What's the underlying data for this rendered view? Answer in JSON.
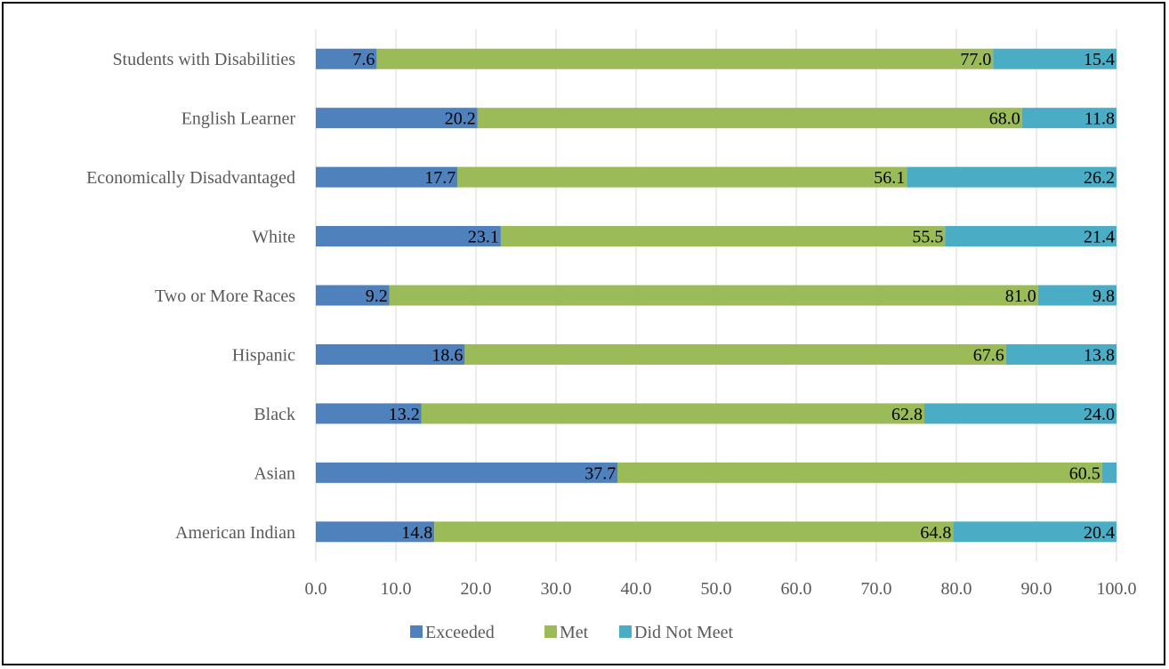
{
  "chart_data": {
    "type": "bar",
    "orientation": "horizontal",
    "stacked": true,
    "categories": [
      "Students with Disabilities",
      "English Learner",
      "Economically Disadvantaged",
      "White",
      "Two or More Races",
      "Hispanic",
      "Black",
      "Asian",
      "American Indian"
    ],
    "series": [
      {
        "name": "Exceeded",
        "color": "#4f81bd",
        "values": [
          7.6,
          20.2,
          17.7,
          23.1,
          9.2,
          18.6,
          13.2,
          37.7,
          14.8
        ]
      },
      {
        "name": "Met",
        "color": "#9bbb59",
        "values": [
          77.0,
          68.0,
          56.1,
          55.5,
          81.0,
          67.6,
          62.8,
          60.5,
          64.8
        ]
      },
      {
        "name": "Did Not Meet",
        "color": "#4bacc6",
        "values": [
          15.4,
          11.8,
          26.2,
          21.4,
          9.8,
          13.8,
          24.0,
          1.8,
          20.4
        ]
      }
    ],
    "data_labels": [
      [
        "7.6",
        "77.0",
        "15.4"
      ],
      [
        "20.2",
        "68.0",
        "11.8"
      ],
      [
        "17.7",
        "56.1",
        "26.2"
      ],
      [
        "23.1",
        "55.5",
        "21.4"
      ],
      [
        "9.2",
        "81.0",
        "9.8"
      ],
      [
        "18.6",
        "67.6",
        "13.8"
      ],
      [
        "13.2",
        "62.8",
        "24.0"
      ],
      [
        "37.7",
        "60.5",
        ""
      ],
      [
        "14.8",
        "64.8",
        "20.4"
      ]
    ],
    "xlim": [
      0,
      100
    ],
    "xticks": [
      "0.0",
      "10.0",
      "20.0",
      "30.0",
      "40.0",
      "50.0",
      "60.0",
      "70.0",
      "80.0",
      "90.0",
      "100.0"
    ],
    "grid": "vertical",
    "legend_position": "bottom"
  }
}
